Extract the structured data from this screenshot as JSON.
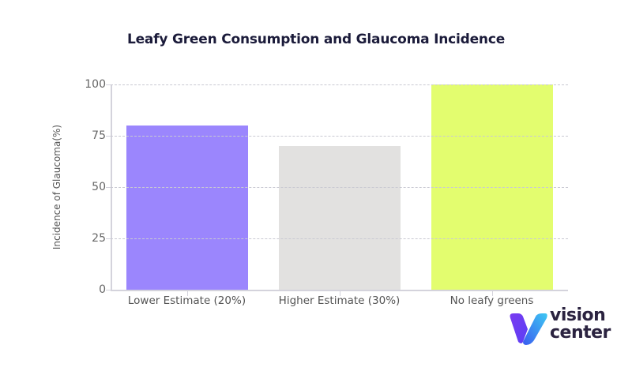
{
  "chart_data": {
    "type": "bar",
    "title": "Leafy Green Consumption and Glaucoma Incidence",
    "xlabel": "",
    "ylabel": "Incidence of Glaucoma(%)",
    "categories": [
      "Lower Estimate (20%)",
      "Higher Estimate (30%)",
      "No leafy greens"
    ],
    "values": [
      80,
      70,
      100
    ],
    "colors": [
      "#9b86fd",
      "#e2e1e0",
      "#e3fd6f"
    ],
    "ylim": [
      0,
      100
    ],
    "yticks": [
      0,
      25,
      50,
      75,
      100
    ],
    "grid": true,
    "grid_style": "dashed horizontal",
    "legend": null
  },
  "logo": {
    "line1": "vision",
    "line2": "center"
  }
}
